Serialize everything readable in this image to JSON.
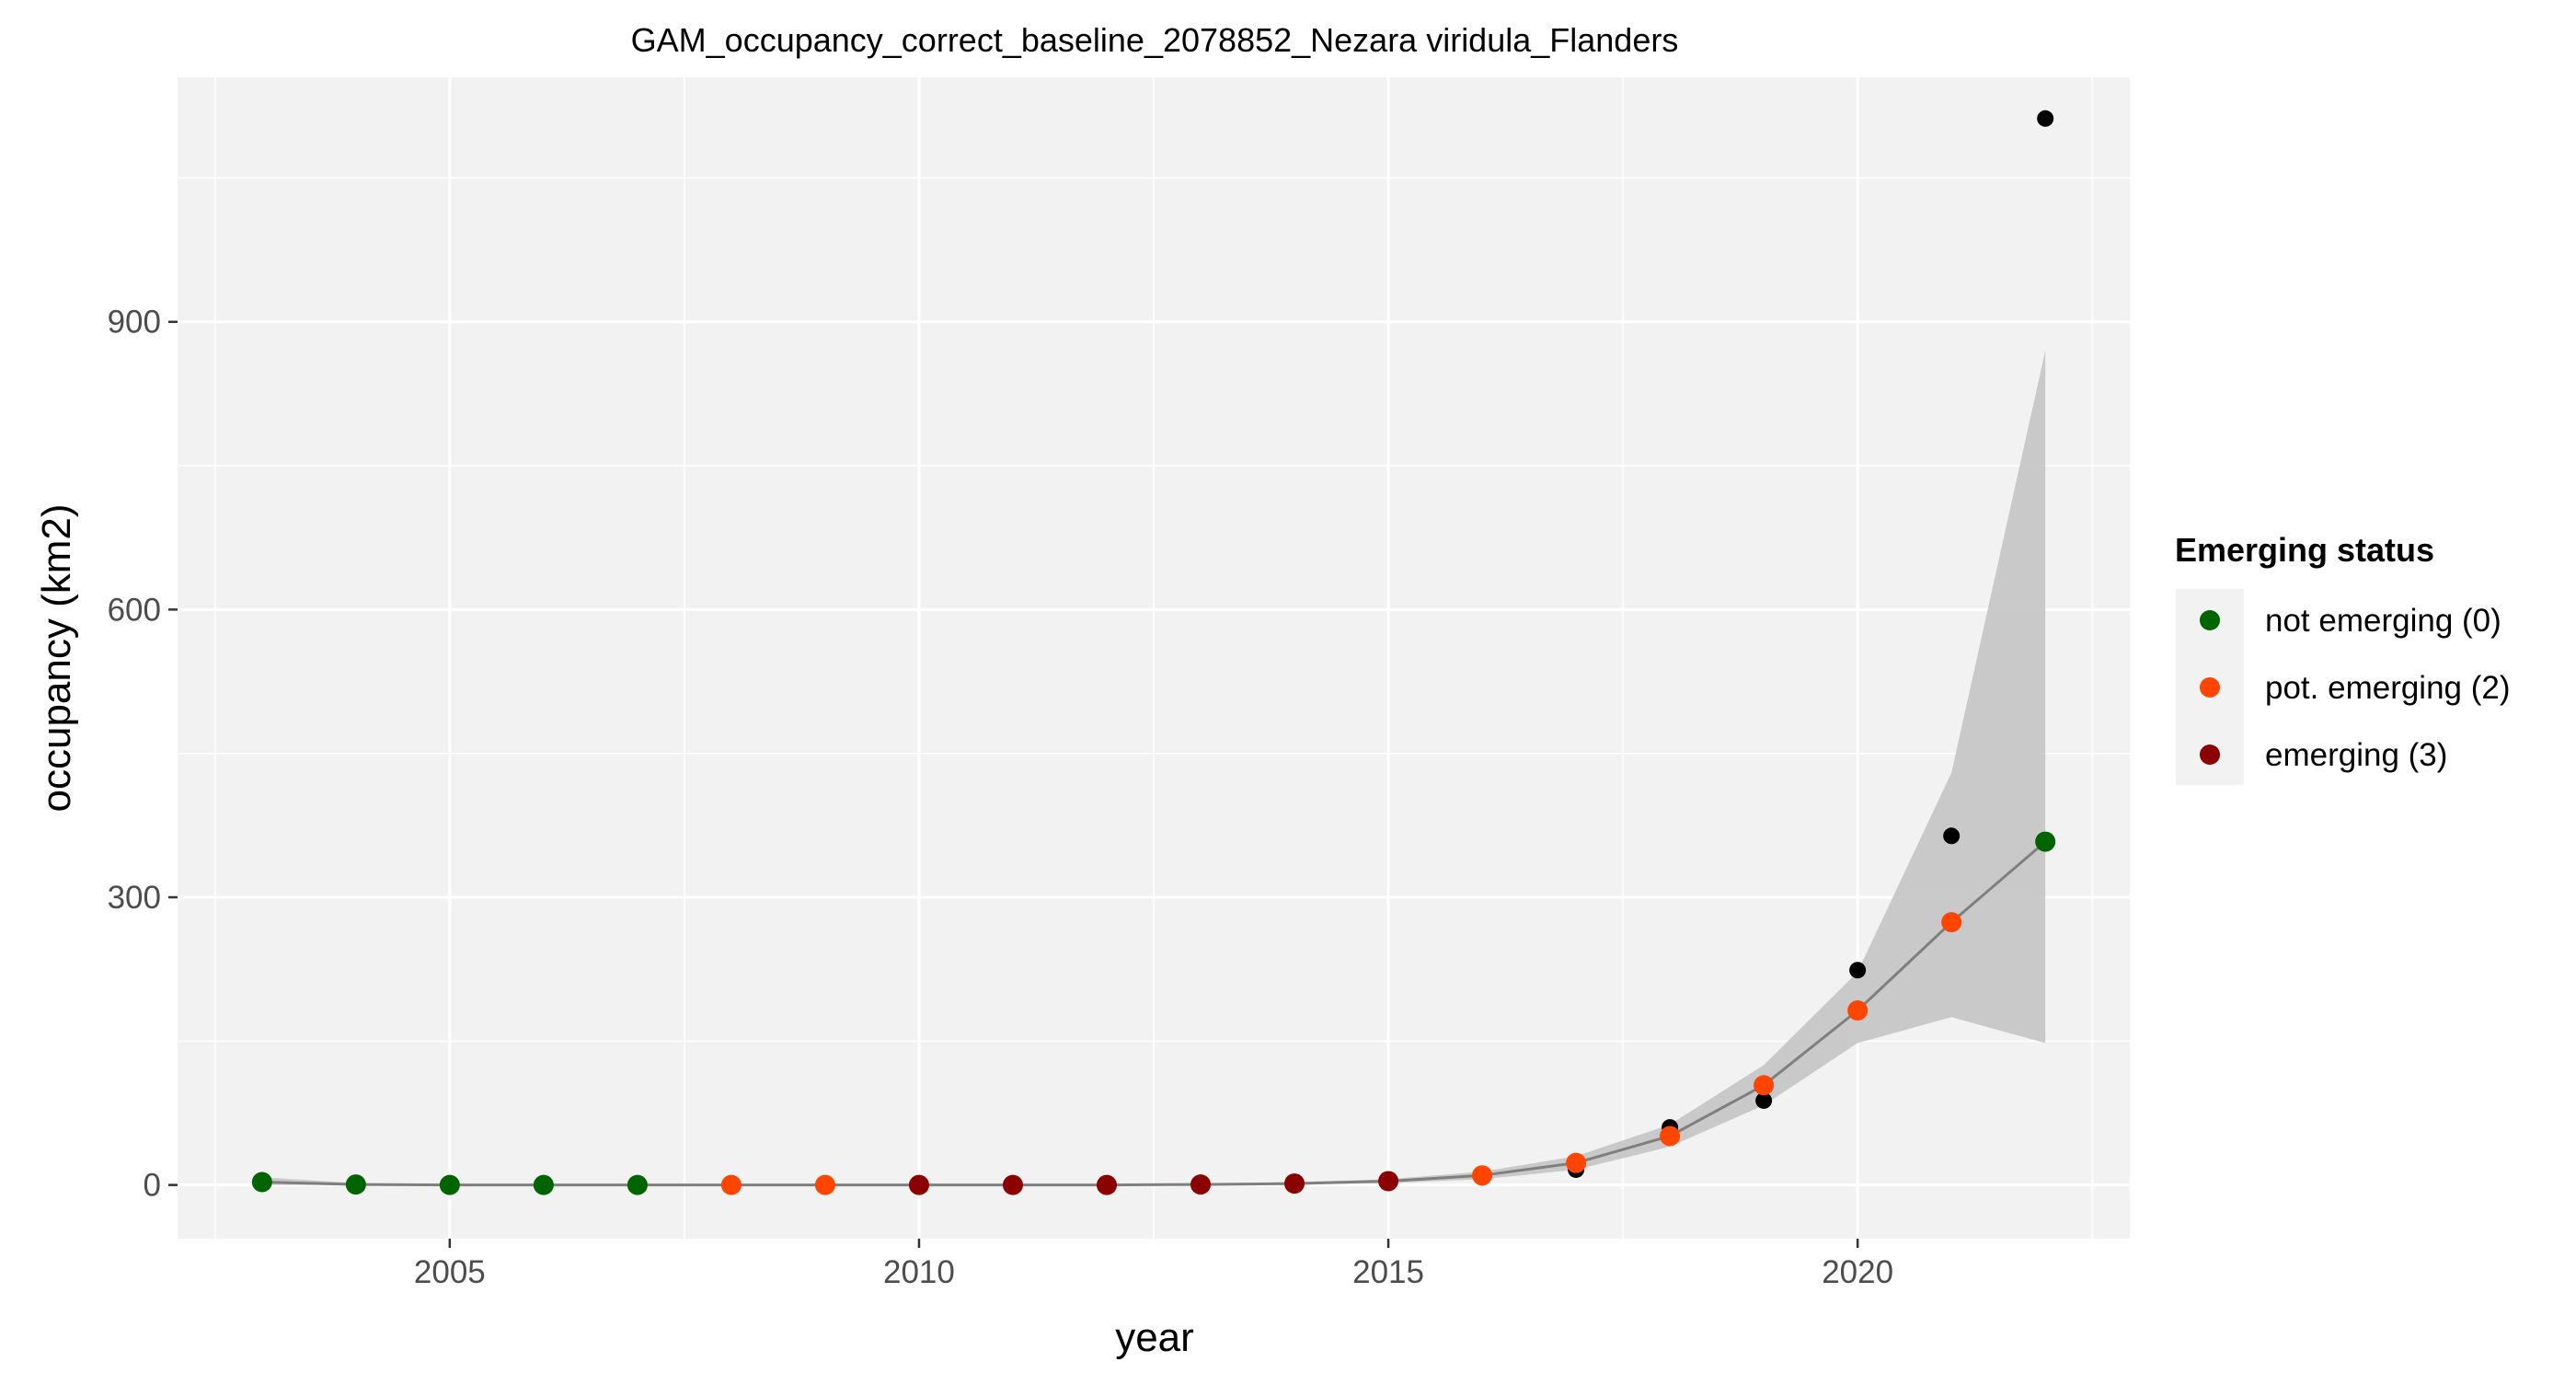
{
  "chart_data": {
    "type": "scatter",
    "title": "GAM_occupancy_correct_baseline_2078852_Nezara viridula_Flanders",
    "xlabel": "year",
    "ylabel": "occupancy (km2)",
    "xlim": [
      2002.1,
      2022.9
    ],
    "ylim": [
      -56,
      1155
    ],
    "x_ticks": [
      2005,
      2010,
      2015,
      2020
    ],
    "x_tick_labels": [
      "2005",
      "2010",
      "2015",
      "2020"
    ],
    "y_ticks": [
      0,
      300,
      600,
      900
    ],
    "y_tick_labels": [
      "0",
      "300",
      "600",
      "900"
    ],
    "grid": true,
    "legend": {
      "title": "Emerging status",
      "placement": "right",
      "entries": [
        {
          "label": "not emerging (0)",
          "color": "#006400"
        },
        {
          "label": "pot. emerging (2)",
          "color": "#FF4500"
        },
        {
          "label": "emerging (3)",
          "color": "#8B0000"
        }
      ]
    },
    "series": [
      {
        "kind": "observed",
        "color": "#000000",
        "x": [
          2003,
          2004,
          2005,
          2006,
          2007,
          2008,
          2009,
          2010,
          2011,
          2012,
          2013,
          2014,
          2015,
          2016,
          2017,
          2018,
          2019,
          2020,
          2021,
          2022
        ],
        "y": [
          4,
          0,
          0,
          0,
          0,
          0,
          0,
          0,
          0,
          0,
          0,
          0,
          4,
          8,
          16,
          60,
          88,
          224,
          364,
          1112
        ]
      },
      {
        "kind": "fitted",
        "color": "#7f7f7f",
        "x": [
          2003,
          2004,
          2005,
          2006,
          2007,
          2008,
          2009,
          2010,
          2011,
          2012,
          2013,
          2014,
          2015,
          2016,
          2017,
          2018,
          2019,
          2020,
          2021,
          2022
        ],
        "y": [
          3,
          0.5,
          0,
          0,
          0,
          0,
          0,
          0,
          0,
          0,
          0.5,
          1.5,
          4,
          10,
          23,
          51,
          104,
          182,
          274,
          358
        ],
        "lower": [
          0,
          0,
          0,
          0,
          0,
          0,
          0,
          0,
          0,
          0,
          0,
          0.5,
          2,
          6,
          16,
          40,
          83,
          148,
          175,
          148
        ],
        "upper": [
          8,
          2,
          0.5,
          0.5,
          0.5,
          0.5,
          0.5,
          0.5,
          0.5,
          0.5,
          1.5,
          3,
          6,
          14,
          30,
          63,
          125,
          222,
          430,
          870
        ],
        "status": [
          0,
          0,
          0,
          0,
          0,
          2,
          2,
          3,
          3,
          3,
          3,
          3,
          3,
          2,
          2,
          2,
          2,
          2,
          2,
          0
        ]
      }
    ]
  }
}
